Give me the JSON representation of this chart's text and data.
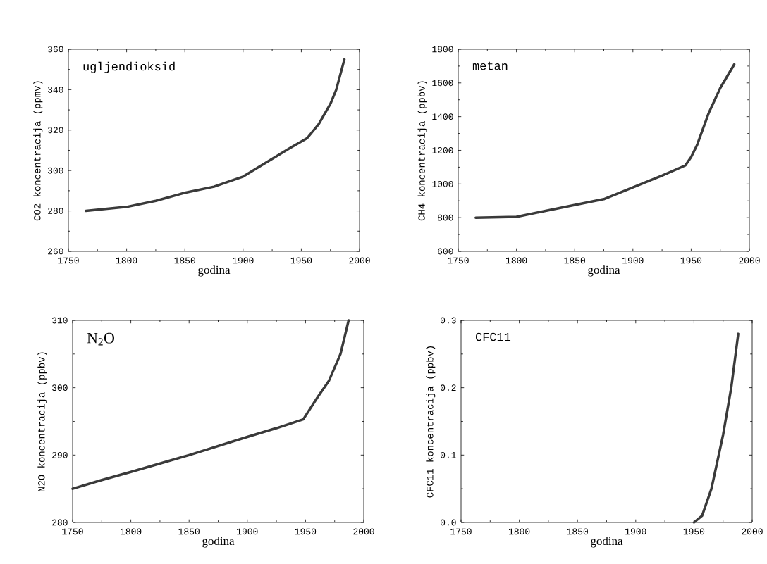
{
  "chart_data": [
    {
      "type": "line",
      "xlabel": "godina",
      "ylabel": "CO2 koncentracija (ppmv)",
      "annotations": [
        "ugljendioksid"
      ],
      "xlim": [
        1750,
        2000
      ],
      "xticks": [
        1750,
        1800,
        1850,
        1900,
        1950,
        2000
      ],
      "ylim": [
        260,
        360
      ],
      "yticks": [
        260,
        280,
        300,
        320,
        340,
        360
      ],
      "color": "#3a3a3a",
      "x": [
        1765,
        1800,
        1825,
        1850,
        1875,
        1900,
        1920,
        1940,
        1955,
        1965,
        1975,
        1980,
        1987
      ],
      "values": [
        280,
        282,
        285,
        289,
        292,
        297,
        304,
        311,
        316,
        323,
        333,
        340,
        355
      ]
    },
    {
      "type": "line",
      "xlabel": "godina",
      "ylabel": "CH4 koncentracija (ppbv)",
      "annotations": [
        "metan"
      ],
      "xlim": [
        1750,
        2000
      ],
      "xticks": [
        1750,
        1800,
        1850,
        1900,
        1950,
        2000
      ],
      "ylim": [
        600,
        1800
      ],
      "yticks": [
        600,
        800,
        1000,
        1200,
        1400,
        1600,
        1800
      ],
      "color": "#3a3a3a",
      "x": [
        1765,
        1800,
        1825,
        1850,
        1875,
        1900,
        1925,
        1945,
        1950,
        1955,
        1965,
        1975,
        1987
      ],
      "values": [
        800,
        805,
        840,
        875,
        910,
        980,
        1050,
        1110,
        1160,
        1230,
        1420,
        1570,
        1710
      ]
    },
    {
      "type": "line",
      "xlabel": "godina",
      "ylabel": "N2O koncentracija (ppbv)",
      "annotations": [
        "N$_{2}$O"
      ],
      "xlim": [
        1750,
        2000
      ],
      "xticks": [
        1750,
        1800,
        1850,
        1900,
        1950,
        2000
      ],
      "ylim": [
        280,
        310
      ],
      "yticks": [
        280,
        290,
        300,
        310
      ],
      "color": "#3a3a3a",
      "x": [
        1750,
        1775,
        1800,
        1850,
        1900,
        1925,
        1948,
        1960,
        1970,
        1980,
        1987
      ],
      "values": [
        285,
        286.3,
        287.5,
        290,
        292.7,
        294,
        295.3,
        298.5,
        301,
        305,
        310
      ]
    },
    {
      "type": "line",
      "xlabel": "godina",
      "ylabel": "CFC11 koncentracija (ppbv)",
      "annotations": [
        "CFC11"
      ],
      "xlim": [
        1750,
        2000
      ],
      "xticks": [
        1750,
        1800,
        1850,
        1900,
        1950,
        2000
      ],
      "ylim": [
        0.0,
        0.3
      ],
      "yticks": [
        {
          "value": 0,
          "label": "0.0"
        },
        0.1,
        0.2,
        0.3
      ],
      "color": "#3a3a3a",
      "x": [
        1950,
        1957,
        1965,
        1975,
        1982,
        1988
      ],
      "values": [
        0,
        0.01,
        0.05,
        0.13,
        0.2,
        0.28
      ]
    }
  ]
}
